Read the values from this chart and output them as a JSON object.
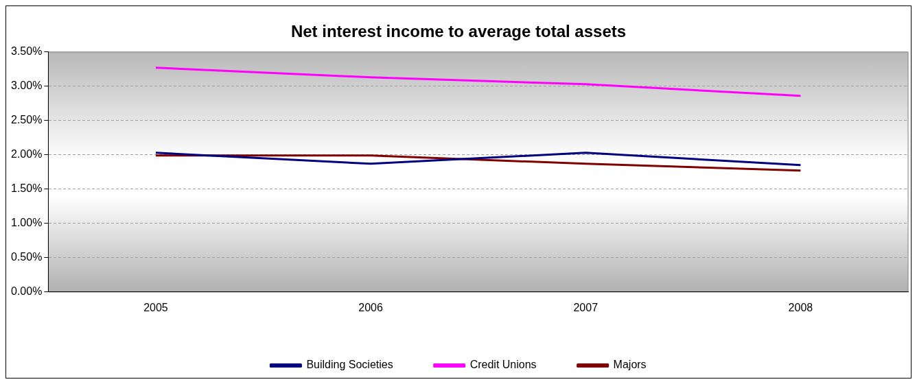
{
  "chart_data": {
    "type": "line",
    "title": "Net interest income to average total assets",
    "categories": [
      "2005",
      "2006",
      "2007",
      "2008"
    ],
    "series": [
      {
        "name": "Building Societies",
        "color": "#000080",
        "values": [
          2.03,
          1.87,
          2.03,
          1.85
        ]
      },
      {
        "name": "Credit Unions",
        "color": "#ff00ff",
        "values": [
          3.27,
          3.13,
          3.03,
          2.86
        ]
      },
      {
        "name": "Majors",
        "color": "#800000",
        "values": [
          1.99,
          1.99,
          1.87,
          1.77
        ]
      }
    ],
    "ylim": [
      0,
      3.5
    ],
    "yticks": [
      {
        "value": 0,
        "label": "0.00%"
      },
      {
        "value": 0.5,
        "label": "0.50%"
      },
      {
        "value": 1,
        "label": "1.00%"
      },
      {
        "value": 1.5,
        "label": "1.50%"
      },
      {
        "value": 2,
        "label": "2.00%"
      },
      {
        "value": 2.5,
        "label": "2.50%"
      },
      {
        "value": 3,
        "label": "3.00%"
      },
      {
        "value": 3.5,
        "label": "3.50%"
      }
    ],
    "grid": "y",
    "legend": "bottom",
    "marker": "none",
    "line_style": "solid"
  }
}
